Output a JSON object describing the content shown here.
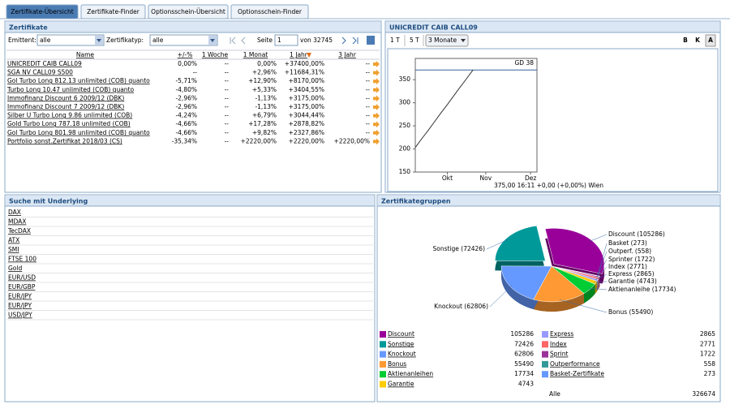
{
  "tabs": [
    "Zertifikate-Übersicht",
    "Zertifikate-Finder",
    "Optionsschein-Übersicht",
    "Optionsschein-Finder"
  ],
  "certificates": {
    "title": "Zertifikate",
    "emittent_label": "Emittent:",
    "emittent_value": "alle",
    "type_label": "Zertifikatyp:",
    "type_value": "alle",
    "page_label": "Seite",
    "page_value": "1",
    "page_total": "von 32745",
    "columns": [
      "Name",
      "+/-%",
      "1 Woche",
      "1 Monat",
      "1 Jahr",
      "3 Jahr"
    ],
    "rows": [
      [
        "UNICREDIT CAIB CALL09",
        "0,00%",
        "--",
        "0,00%",
        "+37400,00%",
        "--"
      ],
      [
        "SGA NV CALL09 S500",
        "--",
        "--",
        "+2,96%",
        "+11684,31%",
        "--"
      ],
      [
        "Gol Turbo Long 812.13 unlimited (COB) quanto",
        "-5,71%",
        "--",
        "+12,90%",
        "+8170,00%",
        "--"
      ],
      [
        "Turbo Long 10.47 unlimited (COB) quanto",
        "-4,80%",
        "--",
        "+5,33%",
        "+3404,55%",
        "--"
      ],
      [
        "Immofinanz Discount 6 2009/12 (DBK)",
        "-2,96%",
        "--",
        "-1,13%",
        "+3175,00%",
        "--"
      ],
      [
        "Immofinanz Discount 7 2009/12 (DBK)",
        "-2,96%",
        "--",
        "-1,13%",
        "+3175,00%",
        "--"
      ],
      [
        "Silber U Turbo Long 9.86 unlimited (COB)",
        "-4,24%",
        "--",
        "+6,79%",
        "+3044,44%",
        "--"
      ],
      [
        "Gold Turbo Long 787.18 unlimited (COB)",
        "-4,66%",
        "--",
        "+17,28%",
        "+2878,82%",
        "--"
      ],
      [
        "Gol Turbo Long 801.98 unlimited (COB) quanto",
        "-4,66%",
        "--",
        "+9,82%",
        "+2327,86%",
        "--"
      ],
      [
        "Portfolio sonst.Zertifikat 2018/03 (CS)",
        "-35,34%",
        "--",
        "+2220,00%",
        "+2220,00%",
        "+2220,00%"
      ]
    ]
  },
  "quote_controls": [
    "1 T",
    "5 T",
    "3 Monate",
    "B",
    "K",
    "A"
  ],
  "underlyings": {
    "title": "Suche mit Underlying",
    "items": [
      "DAX",
      "MDAX",
      "TecDAX",
      "ATX",
      "SMI",
      "FTSE 100",
      "Gold",
      "EUR/USD",
      "EUR/GBP",
      "EUR/JPY",
      "EUR/JPY",
      "USD/JPY"
    ]
  },
  "chart_data": [
    {
      "type": "line",
      "title": "UNICREDIT CAIB CALL09",
      "categories": [
        null,
        null,
        null,
        null,
        null,
        "Okt",
        null,
        null,
        null,
        null,
        null,
        "Nov",
        null,
        null,
        null,
        null,
        null,
        null,
        "Dez",
        null
      ],
      "values": [
        203,
        222,
        240,
        259,
        278,
        296,
        315,
        334,
        352,
        371,
        null,
        null,
        null,
        null,
        null,
        null,
        null,
        null,
        null,
        null
      ],
      "color": "#333333",
      "ylim": [
        150,
        396
      ],
      "yticks": [
        150,
        200,
        250,
        300,
        350
      ],
      "reference_line": {
        "label": "GD 38",
        "value": 371,
        "color": "#336699"
      },
      "footer": "375,00  16:11  +0,00  (+0,00%)  Wien"
    },
    {
      "type": "pie",
      "title": "Zertifikategruppen",
      "values": [
        105286,
        273,
        558,
        1722,
        2771,
        2865,
        4743,
        17734,
        55490,
        62806,
        72426
      ],
      "value_labels": [
        "Discount (105286)",
        "Basket (273)",
        "Outperf. (558)",
        "Sprinter (1722)",
        "Index (2771)",
        "Express (2865)",
        "Garantie (4743)",
        "Aktienanleihe (17734)",
        "Bonus (55490)",
        "Knockout (62806)",
        "Sonstige (72426)"
      ],
      "colors": [
        "#990099",
        "#6699ff",
        "#339999",
        "#993399",
        "#ff6666",
        "#9999ff",
        "#ffcc00",
        "#00cc33",
        "#ff9933",
        "#6699ff",
        "#009999"
      ],
      "legend": [
        {
          "name": "Discount",
          "value": 105286,
          "color": "#990099"
        },
        {
          "name": "Sonstige",
          "value": 72426,
          "color": "#009999"
        },
        {
          "name": "Knockout",
          "value": 62806,
          "color": "#6699ff"
        },
        {
          "name": "Bonus",
          "value": 55490,
          "color": "#ff9933"
        },
        {
          "name": "Aktienanleihen",
          "value": 17734,
          "color": "#00cc33"
        },
        {
          "name": "Garantie",
          "value": 4743,
          "color": "#ffcc00"
        },
        {
          "name": "Express",
          "value": 2865,
          "color": "#9999ff"
        },
        {
          "name": "Index",
          "value": 2771,
          "color": "#ff6666"
        },
        {
          "name": "Sprint",
          "value": 1722,
          "color": "#993399"
        },
        {
          "name": "Outperformance",
          "value": 558,
          "color": "#339999"
        },
        {
          "name": "Basket-Zertifikate",
          "value": 273,
          "color": "#6699ff"
        }
      ],
      "legend_total": {
        "label": "Alle",
        "value": 326674
      }
    }
  ]
}
